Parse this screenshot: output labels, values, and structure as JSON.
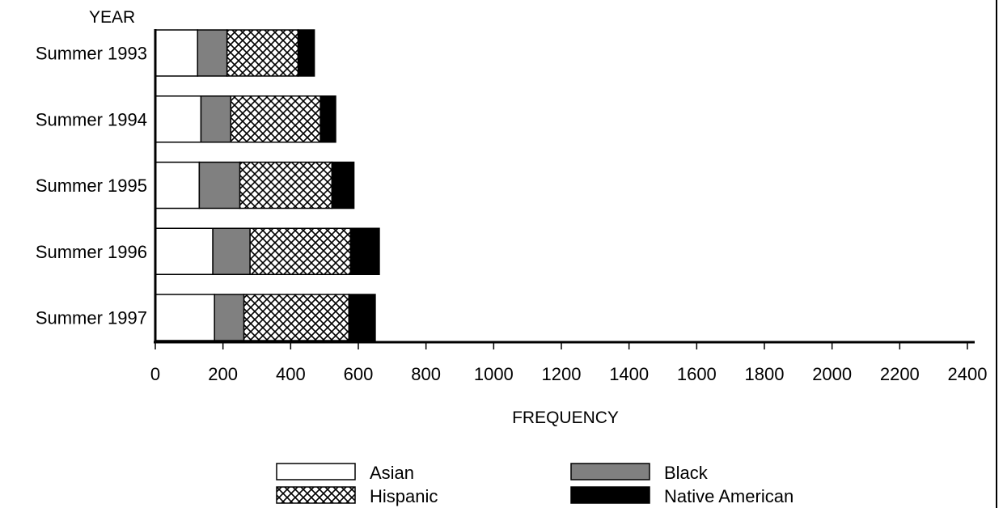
{
  "chart_data": {
    "type": "bar",
    "orientation": "horizontal",
    "stacked": true,
    "categories": [
      "Summer 1993",
      "Summer 1994",
      "Summer 1995",
      "Summer 1996",
      "Summer 1997"
    ],
    "series": [
      {
        "name": "Asian",
        "values": [
          125,
          135,
          130,
          170,
          175
        ],
        "fill": "#ffffff",
        "pattern": "none"
      },
      {
        "name": "Black",
        "values": [
          87,
          88,
          120,
          110,
          87
        ],
        "fill": "#808080",
        "pattern": "none"
      },
      {
        "name": "Hispanic",
        "values": [
          210,
          265,
          272,
          297,
          310
        ],
        "fill": "#ffffff",
        "pattern": "crosshatch"
      },
      {
        "name": "Native American",
        "values": [
          48,
          45,
          65,
          85,
          78
        ],
        "fill": "#000000",
        "pattern": "none"
      }
    ],
    "ylabel": "YEAR",
    "xlabel": "FREQUENCY",
    "xlim": [
      0,
      2400
    ],
    "xticks": [
      0,
      200,
      400,
      600,
      800,
      1000,
      1200,
      1400,
      1600,
      1800,
      2000,
      2200,
      2400
    ],
    "grid": false,
    "legend": "bottom"
  }
}
